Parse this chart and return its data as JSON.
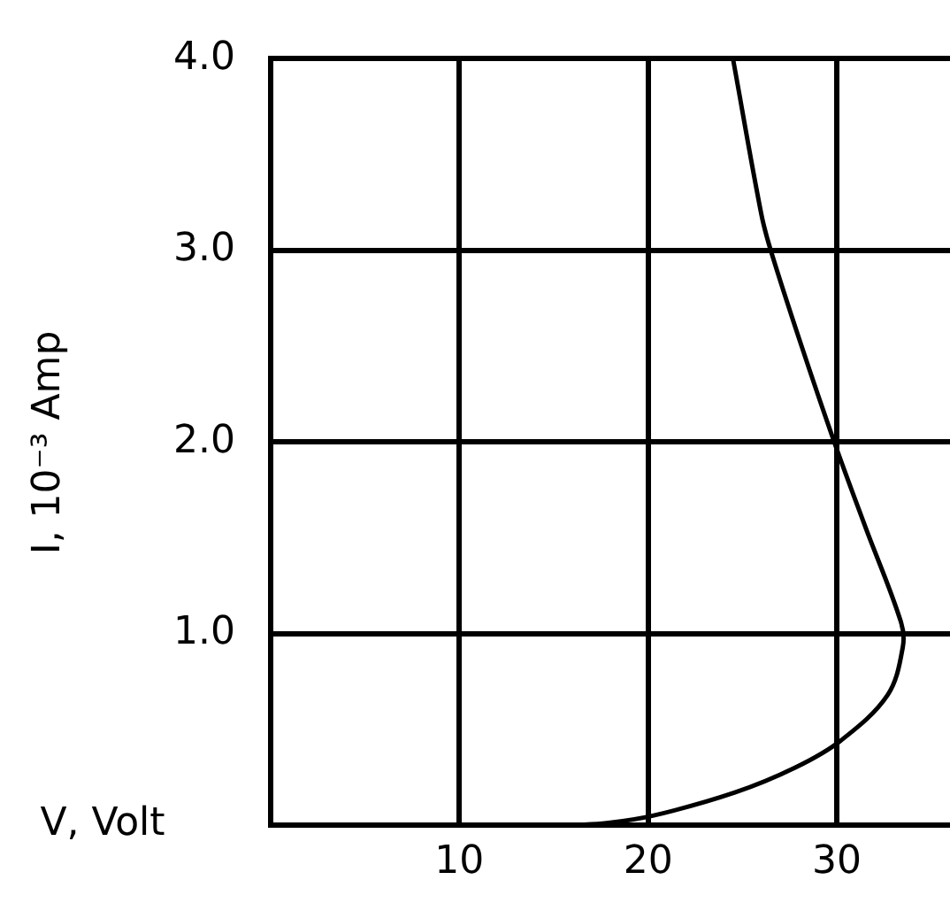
{
  "chart_data": {
    "type": "line",
    "xlabel": "V, Volt",
    "ylabel": "I, 10⁻³ Amp",
    "x": [
      16,
      17.8,
      20.3,
      24.6,
      27.8,
      30.2,
      32.7,
      33.5,
      33.4,
      31.5,
      29.9,
      28.1,
      26.5,
      26.0,
      24.5
    ],
    "series": [
      {
        "color": "#000000",
        "values": [
          0,
          0.01,
          0.05,
          0.17,
          0.3,
          0.44,
          0.68,
          0.93,
          1.06,
          1.56,
          1.99,
          2.51,
          3.0,
          3.19,
          4.0
        ]
      }
    ],
    "xlim": [
      0,
      36
    ],
    "ylim": [
      0,
      4
    ],
    "xticks": [
      10,
      20,
      30
    ],
    "yticks": [
      {
        "value": 1,
        "label": "1.0"
      },
      {
        "value": 2,
        "label": "2.0"
      },
      {
        "value": 3,
        "label": "3.0"
      },
      {
        "value": 4,
        "label": "4.0"
      }
    ],
    "grid": true,
    "legend": false,
    "marker": "none",
    "line_style": "solid"
  }
}
